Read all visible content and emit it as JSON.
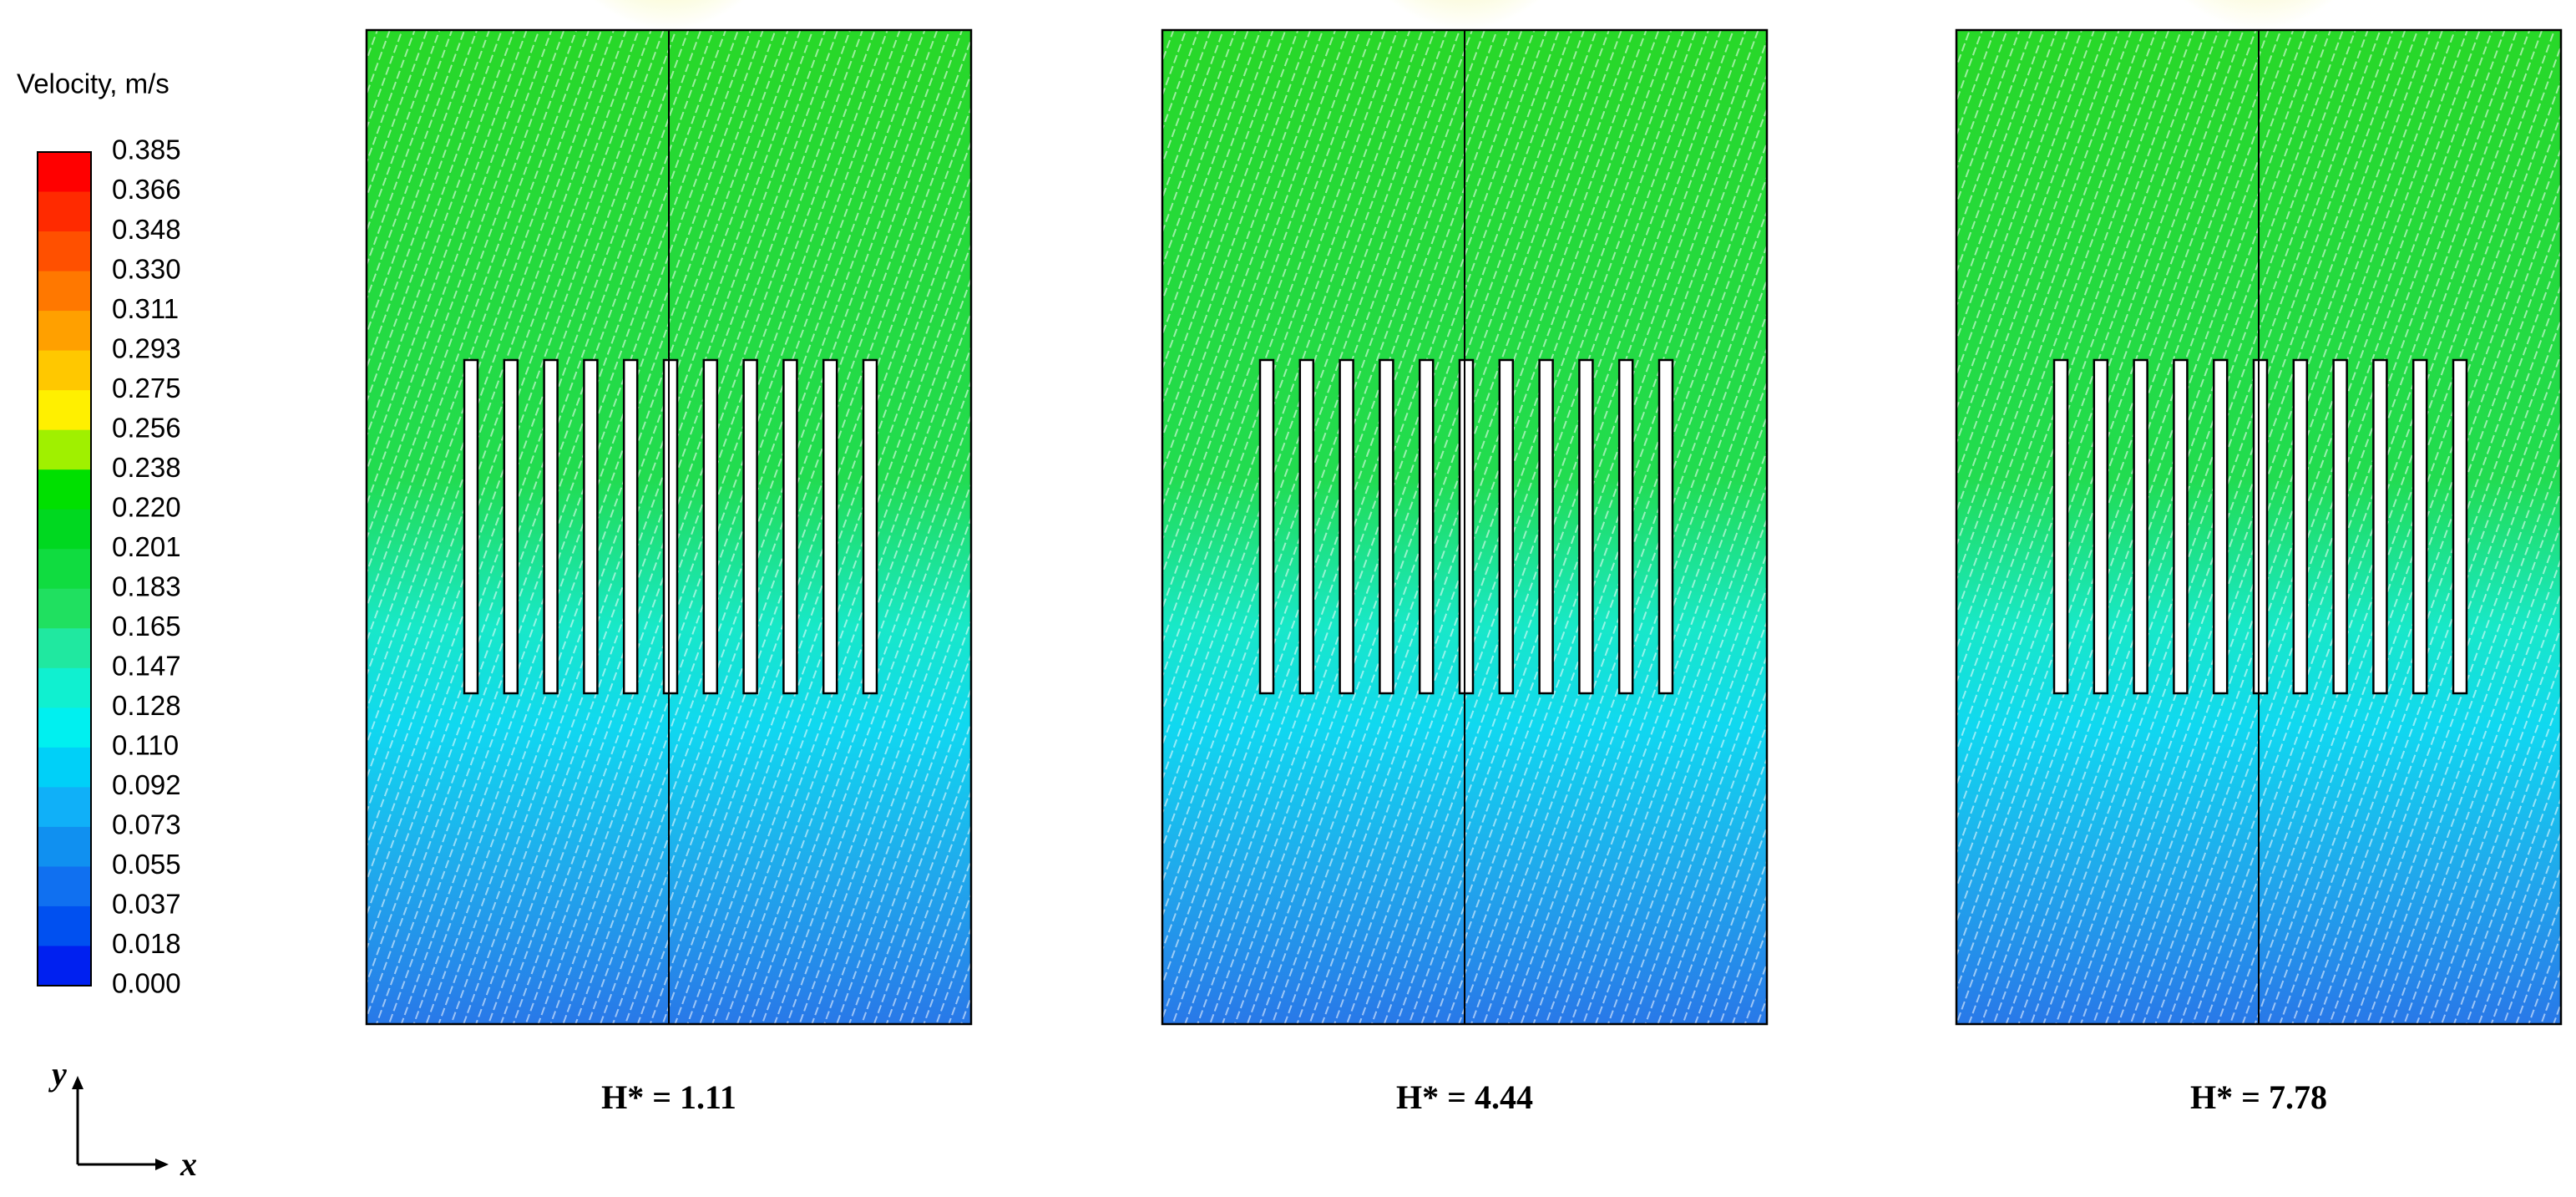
{
  "colorbar": {
    "title": "Velocity, m/s",
    "labels": [
      "0.385",
      "0.366",
      "0.348",
      "0.330",
      "0.311",
      "0.293",
      "0.275",
      "0.256",
      "0.238",
      "0.220",
      "0.201",
      "0.183",
      "0.165",
      "0.147",
      "0.128",
      "0.110",
      "0.092",
      "0.073",
      "0.055",
      "0.037",
      "0.018",
      "0.000"
    ],
    "colors": [
      "#ff0000",
      "#ff2a00",
      "#ff5000",
      "#ff7800",
      "#ffa000",
      "#ffc800",
      "#fff000",
      "#a0f000",
      "#00e000",
      "#00d820",
      "#10dc40",
      "#20e060",
      "#20e8a0",
      "#10f0d0",
      "#00f0f0",
      "#00d0f8",
      "#10b0f8",
      "#1090f0",
      "#1070f0",
      "#0050f0",
      "#0020f0"
    ]
  },
  "panels": [
    {
      "caption": "H* = 1.11"
    },
    {
      "caption": "H* = 4.44"
    },
    {
      "caption": "H* = 7.78"
    }
  ],
  "axes_indicator": {
    "y": "y",
    "x": "x"
  }
}
